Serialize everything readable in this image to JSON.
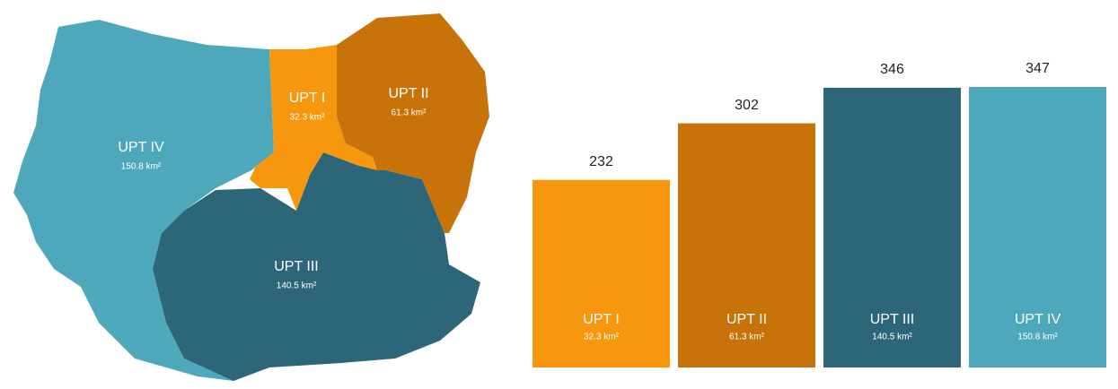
{
  "map": {
    "regions": [
      {
        "name": "UPT IV",
        "area": "150.8 km²",
        "color": "#4ea8bb"
      },
      {
        "name": "UPT III",
        "area": "140.5 km²",
        "color": "#2e6679"
      },
      {
        "name": "UPT I",
        "area": "32.3 km²",
        "color": "#f7970e"
      },
      {
        "name": "UPT II",
        "area": "61.3 km²",
        "color": "#c8730a"
      }
    ]
  },
  "chart_data": {
    "type": "bar",
    "categories": [
      "UPT I",
      "UPT II",
      "UPT III",
      "UPT IV"
    ],
    "areas": [
      "32.3 km²",
      "61.3 km²",
      "140.5 km²",
      "150.8 km²"
    ],
    "values": [
      232,
      302,
      346,
      347
    ],
    "colors": [
      "#f7970e",
      "#c8730a",
      "#2e6679",
      "#4ea8bb"
    ]
  }
}
